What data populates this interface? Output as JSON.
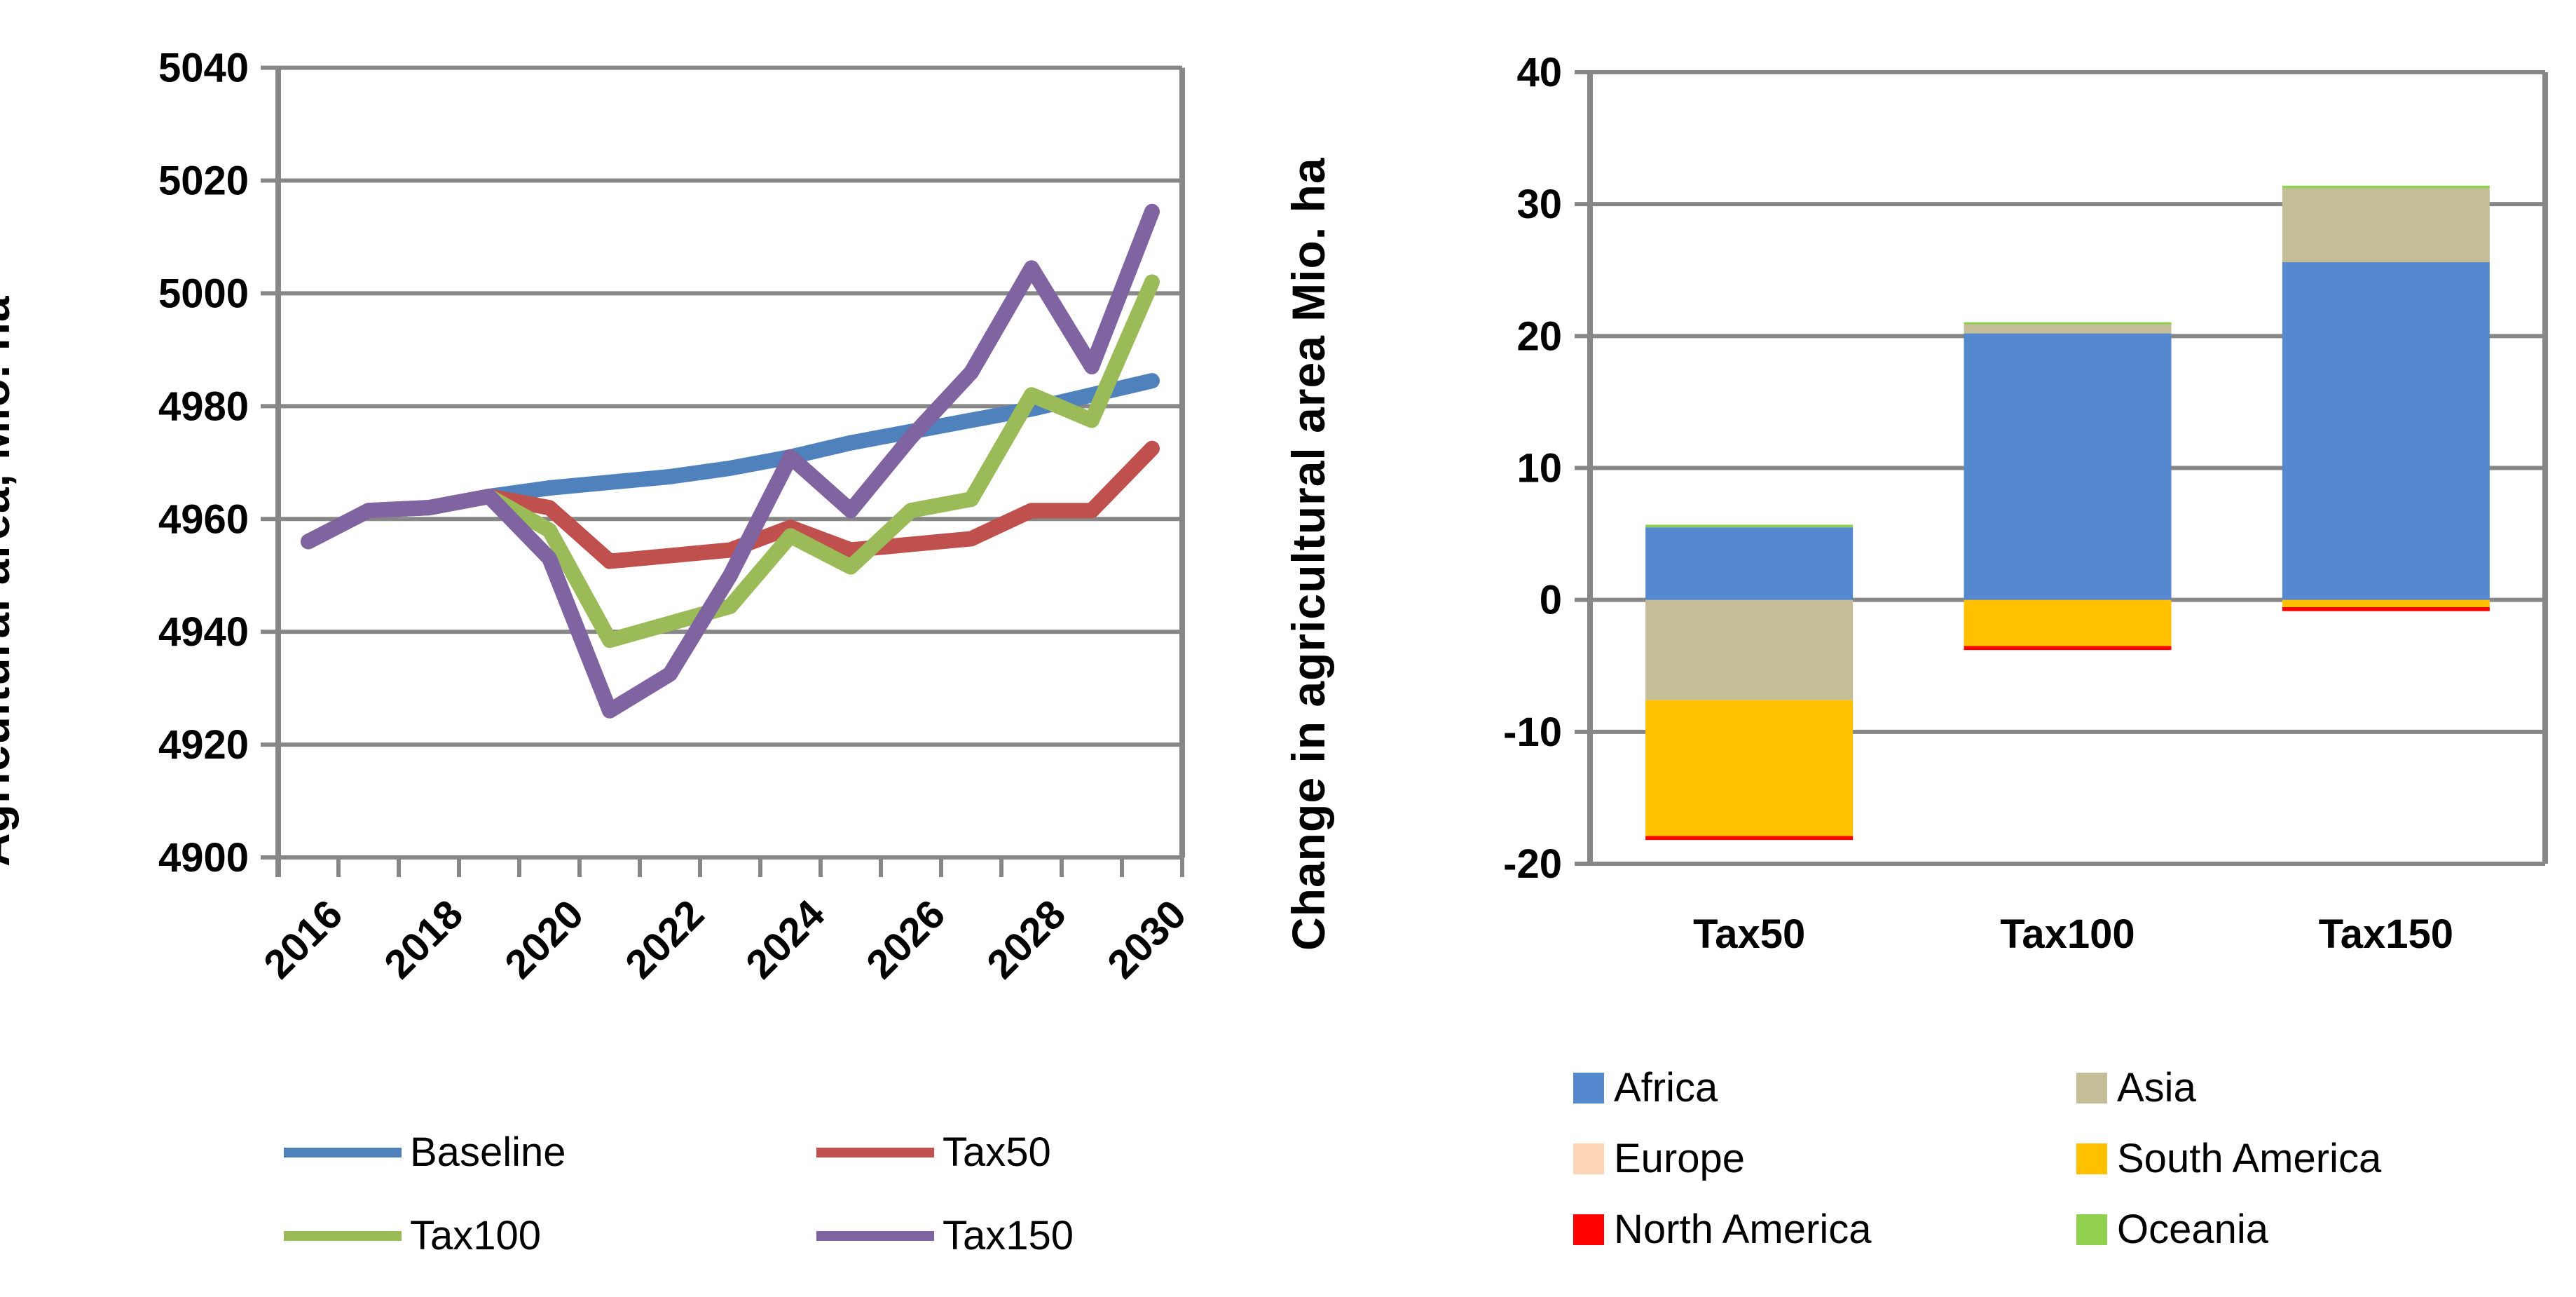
{
  "chart_data": [
    {
      "type": "line",
      "title": "",
      "ylabel": "Agricultural area, Mio. ha",
      "xlabel": "",
      "ylim": [
        4900,
        5040
      ],
      "ytick_step": 20,
      "grid": true,
      "legend_position": "bottom",
      "x": [
        2016,
        2017,
        2018,
        2019,
        2020,
        2021,
        2022,
        2023,
        2024,
        2025,
        2026,
        2027,
        2028,
        2029,
        2030
      ],
      "xtick_labels": [
        "2016",
        "2018",
        "2020",
        "2022",
        "2024",
        "2026",
        "2028",
        "2030"
      ],
      "series": [
        {
          "name": "Baseline",
          "color": "#4F81BD",
          "values": [
            4956,
            4961.5,
            4962,
            4964,
            4965.5,
            4966.5,
            4967.5,
            4969,
            4971,
            4973.5,
            4975.5,
            4977.5,
            4979.5,
            4982,
            4984.5
          ]
        },
        {
          "name": "Tax50",
          "color": "#C0504D",
          "values": [
            4956,
            4961.5,
            4962,
            4964,
            4962,
            4952.5,
            4953.5,
            4954.5,
            4958.5,
            4954.5,
            4955.5,
            4956.5,
            4961.5,
            4961.5,
            4972.5
          ]
        },
        {
          "name": "Tax100",
          "color": "#9BBB59",
          "values": [
            4956,
            4961.5,
            4962,
            4964,
            4958,
            4938.5,
            4941.5,
            4944.5,
            4957,
            4951.5,
            4961.5,
            4963.5,
            4982,
            4977.5,
            5002
          ]
        },
        {
          "name": "Tax150",
          "color": "#8064A2",
          "values": [
            4956,
            4961.5,
            4962,
            4964,
            4953,
            4926,
            4932.5,
            4950,
            4971,
            4961.5,
            4974.5,
            4986,
            5004.5,
            4987,
            5014.5
          ]
        }
      ]
    },
    {
      "type": "bar",
      "stacked": true,
      "title": "",
      "ylabel": "Change in agricultural area Mio. ha",
      "xlabel": "",
      "ylim": [
        -20,
        40
      ],
      "ytick_step": 10,
      "grid": true,
      "legend_position": "bottom",
      "categories": [
        "Tax50",
        "Tax100",
        "Tax150"
      ],
      "series": [
        {
          "name": "Africa",
          "color": "#5588CE",
          "values": [
            5.5,
            20.2,
            25.6
          ]
        },
        {
          "name": "Asia",
          "color": "#C4BD97",
          "values": [
            -7.6,
            0.7,
            5.6
          ]
        },
        {
          "name": "Europe",
          "color": "#FBD5B5",
          "values": [
            0,
            0,
            0
          ]
        },
        {
          "name": "South America",
          "color": "#FFC000",
          "values": [
            -10.3,
            -3.5,
            -0.55
          ]
        },
        {
          "name": "North America",
          "color": "#FF0000",
          "values": [
            -0.3,
            -0.3,
            -0.3
          ]
        },
        {
          "name": "Oceania",
          "color": "#92D050",
          "values": [
            0.2,
            0.15,
            0.2
          ]
        }
      ]
    }
  ],
  "style_colors": {
    "grid": "#878787",
    "axis": "#878787",
    "text": "#000000"
  }
}
